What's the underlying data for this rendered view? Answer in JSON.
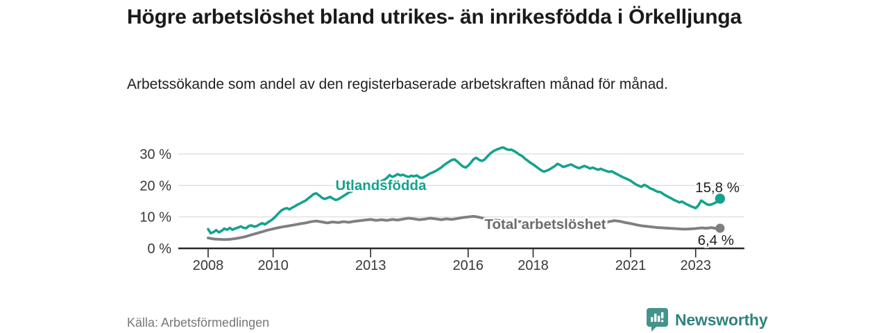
{
  "chart_data": {
    "type": "line",
    "title": "Högre arbetslöshet bland utrikes- än inrikesfödda i Örkelljunga",
    "subtitle": "Arbetssökande som andel av den registerbaserade arbetskraften månad för månad.",
    "source": "Källa: Arbetsförmedlingen",
    "grid": true,
    "legend_position": "inline-labels",
    "x_axis": {
      "tick_values": [
        2008,
        2010,
        2013,
        2016,
        2018,
        2021,
        2023
      ],
      "tick_labels": [
        "2008",
        "2010",
        "2013",
        "2016",
        "2018",
        "2021",
        "2023"
      ],
      "range": [
        2007.1,
        2024.5
      ]
    },
    "y_axis": {
      "tick_values": [
        0,
        10,
        20,
        30
      ],
      "tick_labels": [
        "0 %",
        "10 %",
        "20 %",
        "30 %"
      ],
      "range": [
        0,
        33
      ],
      "unit": "%"
    },
    "series": [
      {
        "name": "Utlandsfödda",
        "color": "#14a28e",
        "label_color": "#14a28e",
        "end_label": "15,8 %",
        "end_value": 15.8,
        "points": [
          [
            2008.0,
            6.1
          ],
          [
            2008.08,
            4.8
          ],
          [
            2008.17,
            5.2
          ],
          [
            2008.25,
            5.8
          ],
          [
            2008.33,
            5.1
          ],
          [
            2008.42,
            5.6
          ],
          [
            2008.5,
            6.3
          ],
          [
            2008.58,
            5.9
          ],
          [
            2008.67,
            6.5
          ],
          [
            2008.75,
            5.9
          ],
          [
            2008.83,
            6.3
          ],
          [
            2008.92,
            6.6
          ],
          [
            2009.0,
            7.0
          ],
          [
            2009.08,
            6.6
          ],
          [
            2009.17,
            6.4
          ],
          [
            2009.25,
            7.1
          ],
          [
            2009.33,
            7.3
          ],
          [
            2009.42,
            6.9
          ],
          [
            2009.5,
            7.1
          ],
          [
            2009.58,
            7.6
          ],
          [
            2009.67,
            8.0
          ],
          [
            2009.75,
            7.6
          ],
          [
            2009.83,
            8.2
          ],
          [
            2009.92,
            8.8
          ],
          [
            2010.0,
            9.4
          ],
          [
            2010.08,
            10.2
          ],
          [
            2010.17,
            11.2
          ],
          [
            2010.25,
            12.0
          ],
          [
            2010.33,
            12.5
          ],
          [
            2010.42,
            12.8
          ],
          [
            2010.5,
            12.4
          ],
          [
            2010.58,
            12.9
          ],
          [
            2010.67,
            13.4
          ],
          [
            2010.75,
            13.9
          ],
          [
            2010.83,
            14.3
          ],
          [
            2010.92,
            14.8
          ],
          [
            2011.0,
            15.2
          ],
          [
            2011.08,
            15.9
          ],
          [
            2011.17,
            16.6
          ],
          [
            2011.25,
            17.3
          ],
          [
            2011.33,
            17.5
          ],
          [
            2011.42,
            16.8
          ],
          [
            2011.5,
            16.1
          ],
          [
            2011.58,
            15.7
          ],
          [
            2011.67,
            16.0
          ],
          [
            2011.75,
            16.4
          ],
          [
            2011.83,
            15.9
          ],
          [
            2011.92,
            15.4
          ],
          [
            2012.0,
            15.6
          ],
          [
            2012.08,
            16.1
          ],
          [
            2012.17,
            16.7
          ],
          [
            2012.25,
            17.2
          ],
          [
            2012.33,
            17.8
          ],
          [
            2012.42,
            18.1
          ],
          [
            2012.5,
            18.8
          ],
          [
            2012.58,
            19.0
          ],
          [
            2012.67,
            19.5
          ],
          [
            2012.75,
            19.9
          ],
          [
            2012.83,
            20.1
          ],
          [
            2012.92,
            20.3
          ],
          [
            2013.0,
            20.6
          ],
          [
            2013.08,
            20.9
          ],
          [
            2013.17,
            21.2
          ],
          [
            2013.25,
            20.8
          ],
          [
            2013.33,
            21.4
          ],
          [
            2013.42,
            21.8
          ],
          [
            2013.5,
            22.4
          ],
          [
            2013.58,
            23.3
          ],
          [
            2013.67,
            22.7
          ],
          [
            2013.75,
            23.1
          ],
          [
            2013.83,
            23.6
          ],
          [
            2013.92,
            23.2
          ],
          [
            2014.0,
            23.4
          ],
          [
            2014.08,
            23.0
          ],
          [
            2014.17,
            22.7
          ],
          [
            2014.25,
            23.1
          ],
          [
            2014.33,
            22.9
          ],
          [
            2014.42,
            23.2
          ],
          [
            2014.5,
            22.6
          ],
          [
            2014.58,
            22.4
          ],
          [
            2014.67,
            22.8
          ],
          [
            2014.75,
            23.3
          ],
          [
            2014.83,
            23.8
          ],
          [
            2014.92,
            24.2
          ],
          [
            2015.0,
            24.6
          ],
          [
            2015.08,
            25.1
          ],
          [
            2015.17,
            25.7
          ],
          [
            2015.25,
            26.4
          ],
          [
            2015.33,
            27.0
          ],
          [
            2015.42,
            27.6
          ],
          [
            2015.5,
            28.1
          ],
          [
            2015.58,
            28.3
          ],
          [
            2015.67,
            27.6
          ],
          [
            2015.75,
            26.8
          ],
          [
            2015.83,
            26.1
          ],
          [
            2015.92,
            25.7
          ],
          [
            2016.0,
            26.3
          ],
          [
            2016.08,
            27.2
          ],
          [
            2016.17,
            28.4
          ],
          [
            2016.25,
            28.8
          ],
          [
            2016.33,
            28.2
          ],
          [
            2016.42,
            27.8
          ],
          [
            2016.5,
            28.2
          ],
          [
            2016.58,
            29.1
          ],
          [
            2016.67,
            30.1
          ],
          [
            2016.75,
            30.7
          ],
          [
            2016.83,
            31.2
          ],
          [
            2016.92,
            31.6
          ],
          [
            2017.0,
            31.9
          ],
          [
            2017.08,
            32.1
          ],
          [
            2017.17,
            31.6
          ],
          [
            2017.25,
            31.3
          ],
          [
            2017.33,
            31.4
          ],
          [
            2017.42,
            30.9
          ],
          [
            2017.5,
            30.4
          ],
          [
            2017.58,
            29.8
          ],
          [
            2017.67,
            29.3
          ],
          [
            2017.75,
            28.5
          ],
          [
            2017.83,
            27.9
          ],
          [
            2017.92,
            27.2
          ],
          [
            2018.0,
            26.7
          ],
          [
            2018.08,
            26.1
          ],
          [
            2018.17,
            25.4
          ],
          [
            2018.25,
            24.8
          ],
          [
            2018.33,
            24.4
          ],
          [
            2018.42,
            24.7
          ],
          [
            2018.5,
            25.1
          ],
          [
            2018.58,
            25.6
          ],
          [
            2018.67,
            26.2
          ],
          [
            2018.75,
            26.9
          ],
          [
            2018.83,
            26.5
          ],
          [
            2018.92,
            25.9
          ],
          [
            2019.0,
            26.1
          ],
          [
            2019.08,
            26.4
          ],
          [
            2019.17,
            26.7
          ],
          [
            2019.25,
            26.2
          ],
          [
            2019.33,
            25.8
          ],
          [
            2019.42,
            25.5
          ],
          [
            2019.5,
            25.9
          ],
          [
            2019.58,
            26.2
          ],
          [
            2019.67,
            25.8
          ],
          [
            2019.75,
            25.4
          ],
          [
            2019.83,
            25.7
          ],
          [
            2019.92,
            25.3
          ],
          [
            2020.0,
            25.0
          ],
          [
            2020.08,
            25.3
          ],
          [
            2020.17,
            24.9
          ],
          [
            2020.25,
            24.6
          ],
          [
            2020.33,
            24.3
          ],
          [
            2020.42,
            24.5
          ],
          [
            2020.5,
            24.0
          ],
          [
            2020.58,
            23.6
          ],
          [
            2020.67,
            23.1
          ],
          [
            2020.75,
            22.7
          ],
          [
            2020.83,
            22.3
          ],
          [
            2020.92,
            21.9
          ],
          [
            2021.0,
            21.5
          ],
          [
            2021.08,
            20.9
          ],
          [
            2021.17,
            20.3
          ],
          [
            2021.25,
            19.9
          ],
          [
            2021.33,
            19.6
          ],
          [
            2021.42,
            20.2
          ],
          [
            2021.5,
            19.8
          ],
          [
            2021.58,
            19.2
          ],
          [
            2021.67,
            18.8
          ],
          [
            2021.75,
            18.4
          ],
          [
            2021.83,
            18.0
          ],
          [
            2021.92,
            17.9
          ],
          [
            2022.0,
            17.3
          ],
          [
            2022.08,
            16.8
          ],
          [
            2022.17,
            16.3
          ],
          [
            2022.25,
            15.9
          ],
          [
            2022.33,
            15.4
          ],
          [
            2022.42,
            15.0
          ],
          [
            2022.5,
            14.6
          ],
          [
            2022.58,
            14.9
          ],
          [
            2022.67,
            14.3
          ],
          [
            2022.75,
            13.9
          ],
          [
            2022.83,
            13.5
          ],
          [
            2022.92,
            13.1
          ],
          [
            2023.0,
            12.8
          ],
          [
            2023.08,
            13.6
          ],
          [
            2023.17,
            15.2
          ],
          [
            2023.25,
            14.7
          ],
          [
            2023.33,
            14.1
          ],
          [
            2023.42,
            13.8
          ],
          [
            2023.5,
            14.0
          ],
          [
            2023.58,
            14.4
          ],
          [
            2023.67,
            14.8
          ],
          [
            2023.75,
            15.8
          ]
        ]
      },
      {
        "name": "Total arbetslöshet",
        "color": "#7e7e83",
        "label_color": "#6a6a70",
        "end_label": "6,4 %",
        "end_value": 6.4,
        "points": [
          [
            2008.0,
            3.3
          ],
          [
            2008.17,
            3.0
          ],
          [
            2008.33,
            2.9
          ],
          [
            2008.5,
            2.8
          ],
          [
            2008.67,
            2.9
          ],
          [
            2008.83,
            3.1
          ],
          [
            2009.0,
            3.4
          ],
          [
            2009.17,
            3.8
          ],
          [
            2009.33,
            4.3
          ],
          [
            2009.5,
            4.8
          ],
          [
            2009.67,
            5.3
          ],
          [
            2009.83,
            5.8
          ],
          [
            2010.0,
            6.2
          ],
          [
            2010.17,
            6.6
          ],
          [
            2010.33,
            6.9
          ],
          [
            2010.5,
            7.2
          ],
          [
            2010.67,
            7.5
          ],
          [
            2010.83,
            7.8
          ],
          [
            2011.0,
            8.1
          ],
          [
            2011.17,
            8.5
          ],
          [
            2011.33,
            8.7
          ],
          [
            2011.5,
            8.4
          ],
          [
            2011.67,
            8.1
          ],
          [
            2011.83,
            8.4
          ],
          [
            2012.0,
            8.2
          ],
          [
            2012.17,
            8.5
          ],
          [
            2012.33,
            8.3
          ],
          [
            2012.5,
            8.6
          ],
          [
            2012.67,
            8.8
          ],
          [
            2012.83,
            9.0
          ],
          [
            2013.0,
            9.2
          ],
          [
            2013.17,
            8.9
          ],
          [
            2013.33,
            9.1
          ],
          [
            2013.5,
            8.9
          ],
          [
            2013.67,
            9.2
          ],
          [
            2013.83,
            9.0
          ],
          [
            2014.0,
            9.3
          ],
          [
            2014.17,
            9.6
          ],
          [
            2014.33,
            9.4
          ],
          [
            2014.5,
            9.1
          ],
          [
            2014.67,
            9.3
          ],
          [
            2014.83,
            9.6
          ],
          [
            2015.0,
            9.4
          ],
          [
            2015.17,
            9.1
          ],
          [
            2015.33,
            9.4
          ],
          [
            2015.5,
            9.2
          ],
          [
            2015.67,
            9.5
          ],
          [
            2015.83,
            9.8
          ],
          [
            2016.0,
            10.0
          ],
          [
            2016.17,
            10.2
          ],
          [
            2016.33,
            9.9
          ],
          [
            2016.5,
            9.5
          ],
          [
            2016.67,
            9.2
          ],
          [
            2016.83,
            9.0
          ],
          [
            2017.0,
            8.8
          ],
          [
            2017.17,
            8.7
          ],
          [
            2017.33,
            8.5
          ],
          [
            2017.5,
            8.6
          ],
          [
            2017.67,
            8.4
          ],
          [
            2017.83,
            8.5
          ],
          [
            2018.0,
            8.3
          ],
          [
            2018.17,
            8.1
          ],
          [
            2018.33,
            8.2
          ],
          [
            2018.5,
            8.0
          ],
          [
            2018.67,
            8.1
          ],
          [
            2018.83,
            7.9
          ],
          [
            2019.0,
            8.0
          ],
          [
            2019.17,
            7.8
          ],
          [
            2019.33,
            7.9
          ],
          [
            2019.5,
            7.7
          ],
          [
            2019.67,
            7.8
          ],
          [
            2019.83,
            7.6
          ],
          [
            2020.0,
            7.5
          ],
          [
            2020.17,
            8.0
          ],
          [
            2020.33,
            8.5
          ],
          [
            2020.5,
            8.8
          ],
          [
            2020.67,
            8.6
          ],
          [
            2020.83,
            8.2
          ],
          [
            2021.0,
            7.9
          ],
          [
            2021.17,
            7.5
          ],
          [
            2021.33,
            7.2
          ],
          [
            2021.5,
            7.0
          ],
          [
            2021.67,
            6.8
          ],
          [
            2021.83,
            6.6
          ],
          [
            2022.0,
            6.5
          ],
          [
            2022.17,
            6.4
          ],
          [
            2022.33,
            6.3
          ],
          [
            2022.5,
            6.2
          ],
          [
            2022.67,
            6.1
          ],
          [
            2022.83,
            6.2
          ],
          [
            2023.0,
            6.3
          ],
          [
            2023.17,
            6.5
          ],
          [
            2023.33,
            6.4
          ],
          [
            2023.5,
            6.6
          ],
          [
            2023.58,
            6.4
          ],
          [
            2023.67,
            6.3
          ],
          [
            2023.75,
            6.4
          ]
        ]
      }
    ]
  },
  "branding": {
    "name": "Newsworthy",
    "icon": "newsworthy-logo-icon",
    "icon_color": "#43938c",
    "text_color": "#2e837e"
  },
  "style_colors": {
    "gridline": "#d9d9d9",
    "axis": "#29292d",
    "axis_text": "#38383c",
    "end_label_text": "#1c1c1c"
  }
}
